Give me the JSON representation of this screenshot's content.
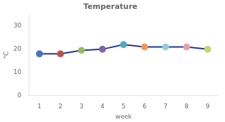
{
  "chart_data": {
    "type": "line",
    "title": "Temperature",
    "xlabel": "week",
    "ylabel": "°C",
    "x": [
      1,
      2,
      3,
      4,
      5,
      6,
      7,
      8,
      9
    ],
    "values": [
      18.0,
      18.0,
      19.5,
      20.0,
      22.0,
      21.0,
      21.0,
      21.0,
      20.0
    ],
    "color": "#1F2F9F",
    "colors": [
      "#4472C4",
      "#C0504D",
      "#9BBB59",
      "#8064A2",
      "#4BACC6",
      "#F79646",
      "#92CDDC",
      "#E8A0A0",
      "#C8D46A"
    ],
    "xlim": [
      0.5,
      9.5
    ],
    "xticks": [
      1,
      2,
      3,
      4,
      5,
      6,
      7,
      8,
      9
    ],
    "ylim": [
      0,
      35
    ],
    "yticks": [
      0,
      10,
      20,
      30
    ],
    "grid": false
  }
}
